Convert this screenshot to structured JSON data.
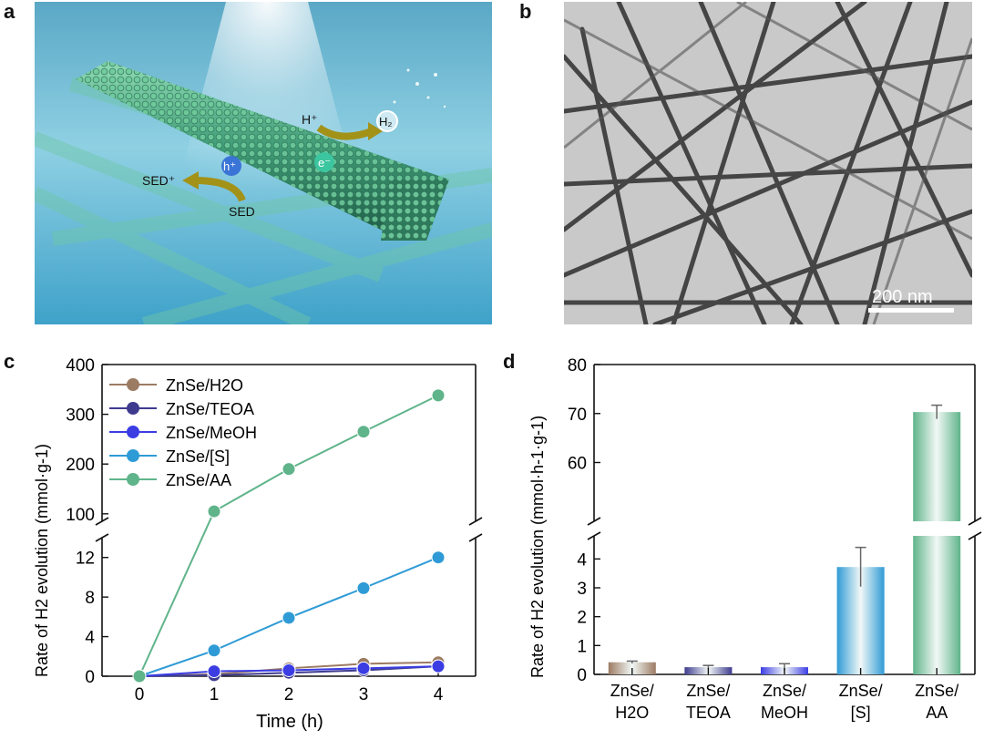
{
  "panels": {
    "a": {
      "letter": "a",
      "labels": {
        "h_plus": "H⁺",
        "h2": "H₂",
        "e_minus": "e⁻",
        "h_hole": "h⁺",
        "sed_plus": "SED⁺",
        "sed": "SED"
      }
    },
    "b": {
      "letter": "b",
      "scale_bar": "200 nm"
    },
    "c": {
      "letter": "c"
    },
    "d": {
      "letter": "d"
    }
  },
  "colors": {
    "h2o": "#9c7b63",
    "teoa": "#3e3b8f",
    "meoh": "#3b3de3",
    "s": "#2f9bd6",
    "aa": "#5fb48a"
  },
  "chart_data": [
    {
      "type": "line",
      "panel": "c",
      "xlabel": "Time (h)",
      "ylabel": "Rate of H2 evolution (mmol·g-1)",
      "x": [
        0,
        1,
        2,
        3,
        4
      ],
      "xticks": [
        0,
        1,
        2,
        3,
        4
      ],
      "ylim_lower": [
        0,
        14
      ],
      "yticks_lower": [
        0,
        4,
        8,
        12
      ],
      "ylim_upper": [
        85,
        400
      ],
      "yticks_upper": [
        100,
        200,
        300,
        400
      ],
      "axis_break": true,
      "legend_position": "top-left",
      "series": [
        {
          "name": "ZnSe/H2O",
          "color": "#9c7b63",
          "values": [
            0,
            0.2,
            0.8,
            1.25,
            1.4
          ]
        },
        {
          "name": "ZnSe/TEOA",
          "color": "#3e3b8f",
          "values": [
            0,
            0.1,
            0.35,
            0.6,
            1.0
          ]
        },
        {
          "name": "ZnSe/MeOH",
          "color": "#3b3de3",
          "values": [
            0,
            0.5,
            0.6,
            0.8,
            1.0
          ]
        },
        {
          "name": "ZnSe/[S]",
          "color": "#2f9bd6",
          "values": [
            0,
            2.6,
            5.9,
            8.9,
            12.0
          ]
        },
        {
          "name": "ZnSe/AA",
          "color": "#5fb48a",
          "values": [
            0,
            105,
            190,
            265,
            338
          ]
        }
      ]
    },
    {
      "type": "bar",
      "panel": "d",
      "ylabel": "Rate of H2 evolution (mmol·h-1·g-1)",
      "categories": [
        "ZnSe/ H2O",
        "ZnSe/ TEOA",
        "ZnSe/ MeOH",
        "ZnSe/ [S]",
        "ZnSe/ AA"
      ],
      "values": [
        0.42,
        0.25,
        0.25,
        3.72,
        70.3
      ],
      "errors": [
        0.04,
        0.06,
        0.12,
        0.68,
        1.4
      ],
      "colors": [
        "#9c7b63",
        "#3e3b8f",
        "#3b3de3",
        "#2f9bd6",
        "#5fb48a"
      ],
      "ylim_lower": [
        0,
        4.8
      ],
      "yticks_lower": [
        0,
        1,
        2,
        3,
        4
      ],
      "ylim_upper": [
        48,
        80
      ],
      "yticks_upper": [
        60,
        70,
        80
      ],
      "axis_break": true
    }
  ]
}
